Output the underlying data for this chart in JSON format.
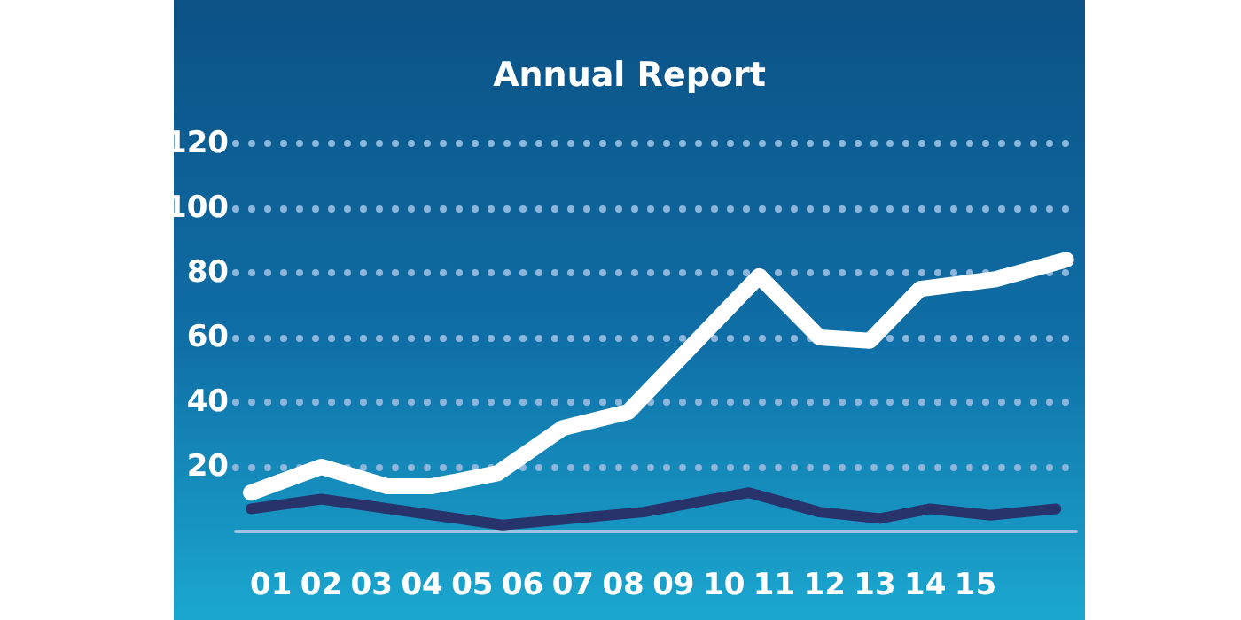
{
  "chart_data": {
    "type": "line",
    "title": "Annual Report",
    "xlim": [
      0.3,
      17
    ],
    "xticks": [
      {
        "value": 1,
        "label": "01"
      },
      {
        "value": 2,
        "label": "02"
      },
      {
        "value": 3,
        "label": "03"
      },
      {
        "value": 4,
        "label": "04"
      },
      {
        "value": 5,
        "label": "05"
      },
      {
        "value": 6,
        "label": "06"
      },
      {
        "value": 7,
        "label": "07"
      },
      {
        "value": 8,
        "label": "08"
      },
      {
        "value": 9,
        "label": "09"
      },
      {
        "value": 10,
        "label": "10"
      },
      {
        "value": 11,
        "label": "11"
      },
      {
        "value": 12,
        "label": "12"
      },
      {
        "value": 13,
        "label": "13"
      },
      {
        "value": 14,
        "label": "14"
      },
      {
        "value": 15,
        "label": "15"
      }
    ],
    "ylim": [
      0,
      120
    ],
    "yticks": [
      20,
      40,
      60,
      80,
      100,
      120
    ],
    "grid": "y",
    "marker": "none",
    "line_style": "solid",
    "series": [
      {
        "color": "#ffffff",
        "x": [
          0.6,
          2,
          3.3,
          4.2,
          5.5,
          6.8,
          8.1,
          10.7,
          11.9,
          12.9,
          13.9,
          15.4,
          16.8
        ],
        "values": [
          12,
          20,
          14,
          14,
          18,
          32,
          37,
          79,
          60,
          59,
          75,
          78,
          84
        ]
      },
      {
        "color": "#28336b",
        "x": [
          0.6,
          2,
          5.6,
          8.4,
          10.5,
          11.9,
          13.1,
          14.1,
          15.3,
          16.6
        ],
        "values": [
          7,
          10,
          2,
          6,
          12,
          6,
          4,
          7,
          5,
          7
        ]
      }
    ]
  }
}
